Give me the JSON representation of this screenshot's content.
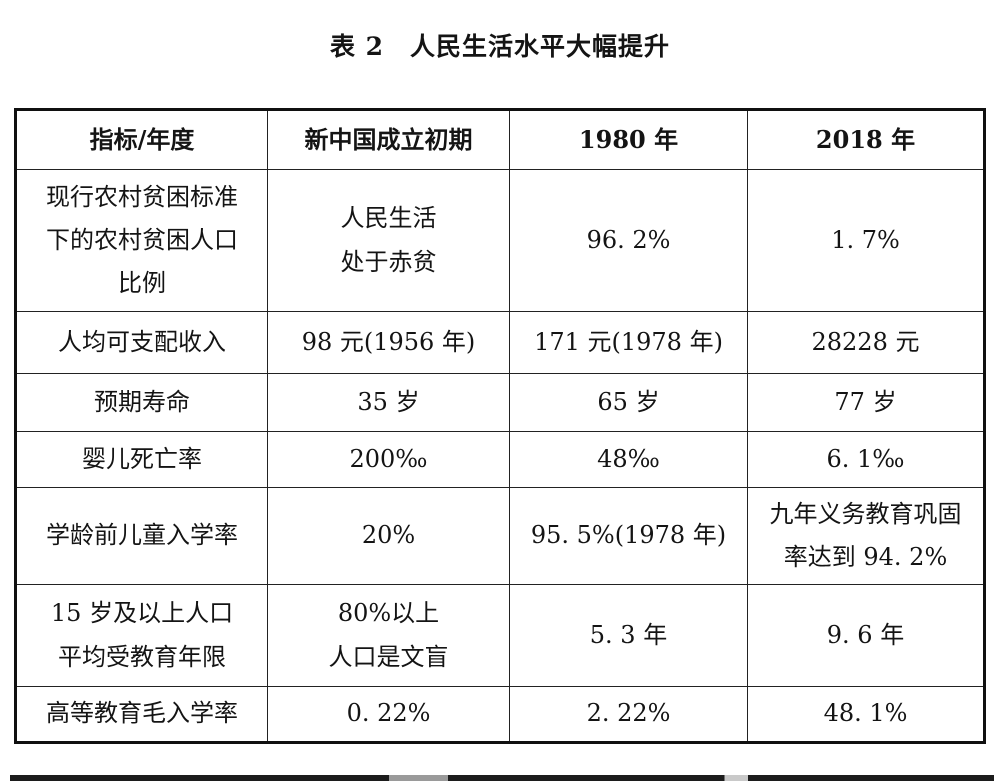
{
  "title": "表 2　人民生活水平大幅提升",
  "colors": {
    "text": "#141414",
    "background": "#ffffff",
    "border": "#101010"
  },
  "table": {
    "headers": [
      "指标/年度",
      "新中国成立初期",
      "1980 年",
      "2018 年"
    ],
    "rows": [
      [
        "现行农村贫困标准\n下的农村贫困人口\n比例",
        "人民生活\n处于赤贫",
        "96. 2%",
        "1. 7%"
      ],
      [
        "人均可支配收入",
        "98 元(1956 年)",
        "171 元(1978 年)",
        "28228 元"
      ],
      [
        "预期寿命",
        "35 岁",
        "65 岁",
        "77 岁"
      ],
      [
        "婴儿死亡率",
        "200‰",
        "48‰",
        "6. 1‰"
      ],
      [
        "学龄前儿童入学率",
        "20%",
        "95. 5%(1978 年)",
        "九年义务教育巩固\n率达到 94. 2%"
      ],
      [
        "15 岁及以上人口\n平均受教育年限",
        "80%以上\n人口是文盲",
        "5. 3 年",
        "9. 6 年"
      ],
      [
        "高等教育毛入学率",
        "0. 22%",
        "2. 22%",
        "48. 1%"
      ]
    ]
  }
}
